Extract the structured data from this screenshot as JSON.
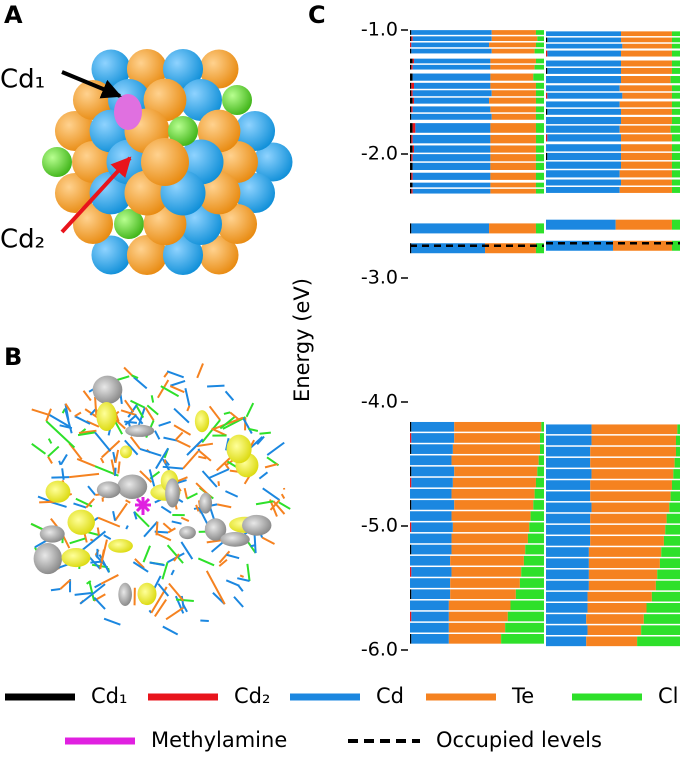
{
  "panels": {
    "a": {
      "label": "A",
      "annotations": [
        {
          "text": "Cd₁",
          "color": "#000000"
        },
        {
          "text": "Cd₂",
          "color": "#e8141c"
        }
      ]
    },
    "b": {
      "label": "B"
    }
  },
  "chart_data": {
    "type": "levels",
    "label": "C",
    "y_label": "Energy (eV)",
    "ylim": [
      -1.0,
      -6.0
    ],
    "yticks": [
      {
        "value": -1.0,
        "label": "-1.0"
      },
      {
        "value": -2.0,
        "label": "-2.0"
      },
      {
        "value": -3.0,
        "label": "-3.0"
      },
      {
        "value": -4.0,
        "label": "-4.0"
      },
      {
        "value": -5.0,
        "label": "-5.0"
      },
      {
        "value": -6.0,
        "label": "-6.0"
      }
    ],
    "series": [
      {
        "name": "Cd₁",
        "color": "#000000"
      },
      {
        "name": "Cd₂",
        "color": "#e8141c"
      },
      {
        "name": "Cd",
        "color": "#1b87e0"
      },
      {
        "name": "Te",
        "color": "#f58220"
      },
      {
        "name": "Cl",
        "color": "#2ee02a"
      },
      {
        "name": "Methylamine",
        "color": "#e020e0"
      }
    ],
    "occupied": {
      "name": "Occupied levels",
      "values": [
        -2.74,
        -2.72
      ]
    },
    "columns": [
      {
        "energies": [
          -1.02,
          -1.07,
          -1.12,
          -1.17,
          -1.25,
          -1.3,
          -1.38,
          -1.45,
          -1.51,
          -1.57,
          -1.64,
          -1.7,
          -1.79,
          -1.88,
          -1.96,
          -2.03,
          -2.1,
          -2.18,
          -2.25,
          -2.3,
          -2.6,
          -2.76,
          -4.2,
          -4.29,
          -4.38,
          -4.47,
          -4.56,
          -4.65,
          -4.74,
          -4.83,
          -4.92,
          -5.01,
          -5.1,
          -5.19,
          -5.28,
          -5.37,
          -5.46,
          -5.55,
          -5.64,
          -5.73,
          -5.82,
          -5.91
        ],
        "fractions": [
          [
            1,
            0,
            60,
            33,
            6,
            0
          ],
          [
            1,
            1,
            59,
            34,
            5,
            0
          ],
          [
            0,
            1,
            58,
            35,
            6,
            0
          ],
          [
            1,
            0,
            60,
            32,
            7,
            0
          ],
          [
            2,
            1,
            57,
            34,
            6,
            0
          ],
          [
            1,
            1,
            58,
            33,
            7,
            0
          ],
          [
            2,
            0,
            58,
            32,
            8,
            0
          ],
          [
            1,
            2,
            57,
            34,
            6,
            0
          ],
          [
            1,
            1,
            59,
            33,
            6,
            0
          ],
          [
            2,
            1,
            56,
            35,
            6,
            0
          ],
          [
            1,
            1,
            58,
            34,
            6,
            0
          ],
          [
            1,
            0,
            60,
            33,
            6,
            0
          ],
          [
            2,
            2,
            56,
            34,
            6,
            0
          ],
          [
            1,
            1,
            58,
            34,
            6,
            0
          ],
          [
            2,
            1,
            57,
            34,
            6,
            0
          ],
          [
            1,
            1,
            58,
            34,
            6,
            0
          ],
          [
            2,
            0,
            58,
            34,
            6,
            0
          ],
          [
            1,
            1,
            58,
            34,
            6,
            0
          ],
          [
            2,
            0,
            58,
            34,
            6,
            0
          ],
          [
            1,
            1,
            58,
            34,
            6,
            0
          ],
          [
            1,
            0,
            58,
            35,
            6,
            0
          ],
          [
            1,
            0,
            55,
            38,
            6,
            0
          ],
          [
            1,
            0,
            32,
            65,
            2,
            0
          ],
          [
            0,
            1,
            32,
            64,
            3,
            0
          ],
          [
            1,
            0,
            31,
            65,
            3,
            0
          ],
          [
            0,
            0,
            31,
            65,
            4,
            0
          ],
          [
            1,
            0,
            32,
            62,
            5,
            0
          ],
          [
            0,
            1,
            31,
            62,
            6,
            0
          ],
          [
            0,
            0,
            31,
            62,
            7,
            0
          ],
          [
            1,
            0,
            32,
            59,
            8,
            0
          ],
          [
            0,
            0,
            31,
            59,
            10,
            0
          ],
          [
            0,
            1,
            31,
            57,
            11,
            0
          ],
          [
            0,
            0,
            31,
            57,
            12,
            0
          ],
          [
            1,
            0,
            30,
            55,
            14,
            0
          ],
          [
            0,
            0,
            30,
            55,
            15,
            0
          ],
          [
            0,
            1,
            30,
            52,
            17,
            0
          ],
          [
            0,
            0,
            30,
            52,
            18,
            0
          ],
          [
            1,
            0,
            29,
            49,
            21,
            0
          ],
          [
            0,
            0,
            29,
            46,
            25,
            0
          ],
          [
            0,
            1,
            28,
            44,
            27,
            0
          ],
          [
            0,
            0,
            29,
            42,
            29,
            0
          ],
          [
            1,
            0,
            28,
            39,
            32,
            0
          ]
        ]
      },
      {
        "energies": [
          -1.03,
          -1.08,
          -1.13,
          -1.19,
          -1.27,
          -1.33,
          -1.4,
          -1.47,
          -1.53,
          -1.6,
          -1.66,
          -1.73,
          -1.8,
          -1.87,
          -1.95,
          -2.02,
          -2.09,
          -2.16,
          -2.23,
          -2.29,
          -2.57,
          -2.74,
          -4.22,
          -4.31,
          -4.4,
          -4.49,
          -4.58,
          -4.67,
          -4.76,
          -4.85,
          -4.94,
          -5.03,
          -5.12,
          -5.21,
          -5.3,
          -5.39,
          -5.48,
          -5.57,
          -5.66,
          -5.75,
          -5.84,
          -5.93
        ],
        "fractions": [
          [
            0,
            0,
            56,
            38,
            6,
            0
          ],
          [
            1,
            0,
            55,
            38,
            6,
            0
          ],
          [
            0,
            0,
            57,
            37,
            6,
            0
          ],
          [
            0,
            1,
            55,
            38,
            6,
            0
          ],
          [
            0,
            0,
            56,
            38,
            6,
            0
          ],
          [
            1,
            0,
            55,
            38,
            6,
            0
          ],
          [
            0,
            0,
            56,
            37,
            7,
            0
          ],
          [
            0,
            0,
            55,
            39,
            6,
            0
          ],
          [
            0,
            1,
            56,
            37,
            6,
            0
          ],
          [
            0,
            0,
            55,
            39,
            6,
            0
          ],
          [
            1,
            0,
            55,
            38,
            6,
            0
          ],
          [
            0,
            0,
            56,
            38,
            6,
            0
          ],
          [
            0,
            0,
            55,
            38,
            7,
            0
          ],
          [
            0,
            1,
            55,
            38,
            6,
            0
          ],
          [
            0,
            0,
            56,
            38,
            6,
            0
          ],
          [
            1,
            0,
            55,
            38,
            6,
            0
          ],
          [
            0,
            0,
            56,
            38,
            6,
            0
          ],
          [
            0,
            0,
            55,
            39,
            6,
            0
          ],
          [
            0,
            0,
            56,
            38,
            6,
            0
          ],
          [
            0,
            0,
            55,
            39,
            6,
            0
          ],
          [
            0,
            0,
            52,
            42,
            6,
            0
          ],
          [
            0,
            0,
            50,
            44,
            6,
            0
          ],
          [
            0,
            0,
            34,
            64,
            2,
            0
          ],
          [
            0,
            0,
            34,
            63,
            3,
            0
          ],
          [
            0,
            0,
            33,
            64,
            3,
            0
          ],
          [
            0,
            0,
            33,
            63,
            4,
            0
          ],
          [
            0,
            0,
            34,
            61,
            5,
            0
          ],
          [
            0,
            0,
            33,
            61,
            6,
            0
          ],
          [
            0,
            0,
            33,
            60,
            7,
            0
          ],
          [
            0,
            0,
            34,
            58,
            8,
            0
          ],
          [
            0,
            0,
            33,
            57,
            10,
            0
          ],
          [
            0,
            0,
            33,
            56,
            11,
            0
          ],
          [
            0,
            0,
            33,
            55,
            12,
            0
          ],
          [
            0,
            0,
            32,
            54,
            14,
            0
          ],
          [
            0,
            0,
            32,
            53,
            15,
            0
          ],
          [
            0,
            0,
            32,
            51,
            17,
            0
          ],
          [
            0,
            0,
            32,
            50,
            18,
            0
          ],
          [
            0,
            0,
            31,
            48,
            21,
            0
          ],
          [
            0,
            0,
            31,
            44,
            25,
            0
          ],
          [
            0,
            0,
            30,
            43,
            27,
            0
          ],
          [
            0,
            0,
            31,
            40,
            29,
            0
          ],
          [
            0,
            0,
            30,
            38,
            32,
            0
          ]
        ]
      }
    ]
  }
}
